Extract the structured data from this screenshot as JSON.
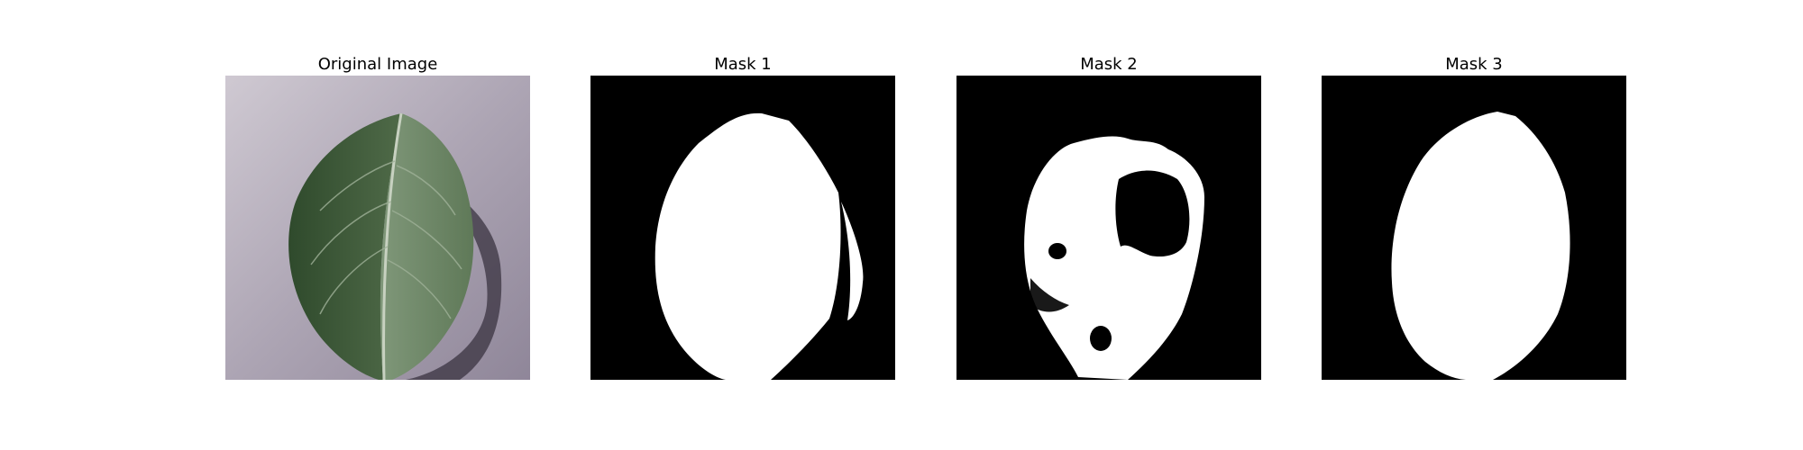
{
  "panels": [
    {
      "title": "Original Image"
    },
    {
      "title": "Mask 1"
    },
    {
      "title": "Mask 2"
    },
    {
      "title": "Mask 3"
    }
  ],
  "colors": {
    "background": "#ffffff",
    "mask_background": "#000000",
    "mask_foreground": "#ffffff",
    "surface": "#a49cab",
    "leaf": "#4d6a47"
  }
}
